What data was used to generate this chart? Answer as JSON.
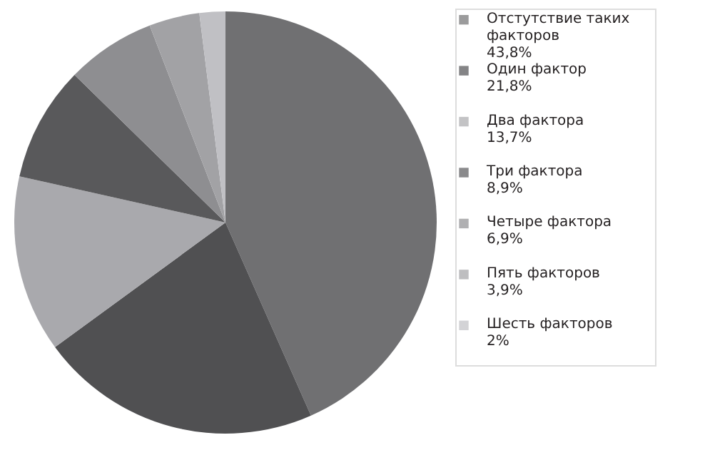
{
  "chart_data": {
    "type": "pie",
    "categories": [
      "Отстутствие таких факторов",
      "Один фактор",
      "Два фактора",
      "Три фактора",
      "Четыре фактора",
      "Пять факторов",
      "Шесть факторов"
    ],
    "values": [
      43.8,
      21.8,
      13.7,
      8.9,
      6.9,
      3.9,
      2
    ],
    "value_labels": [
      "43,8%",
      "21,8%",
      "13,7%",
      "8,9%",
      "6,9%",
      "3,9%",
      "2%"
    ],
    "colors": [
      "#707072",
      "#505052",
      "#a9a9ad",
      "#59595b",
      "#8e8e91",
      "#a2a2a5",
      "#c0c0c4"
    ],
    "legend": "right"
  }
}
